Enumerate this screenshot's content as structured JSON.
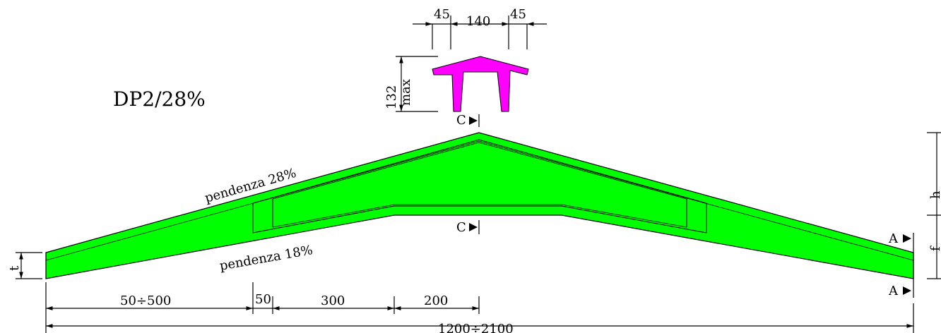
{
  "title": "DP2/28%",
  "slope_top_label": "pendenza 28%",
  "slope_bottom_label": "pendenza 18%",
  "section_marks": {
    "c_top": "C",
    "c_bottom": "C",
    "a_top": "A",
    "a_bottom": "A"
  },
  "section_dims": {
    "flange_left": "45",
    "web_gap": "140",
    "flange_right": "45",
    "height": "132",
    "height_note": "max"
  },
  "span_dims": {
    "segment_1": "50÷500",
    "segment_2": "50",
    "segment_3": "300",
    "segment_4": "200",
    "total": "1200÷2100"
  },
  "end_dims": {
    "left": "t",
    "right_top": "h",
    "right_bottom": "f"
  },
  "colors": {
    "beam_fill": "#00ff00",
    "section_fill": "#ff00ff",
    "lines": "#000000"
  }
}
